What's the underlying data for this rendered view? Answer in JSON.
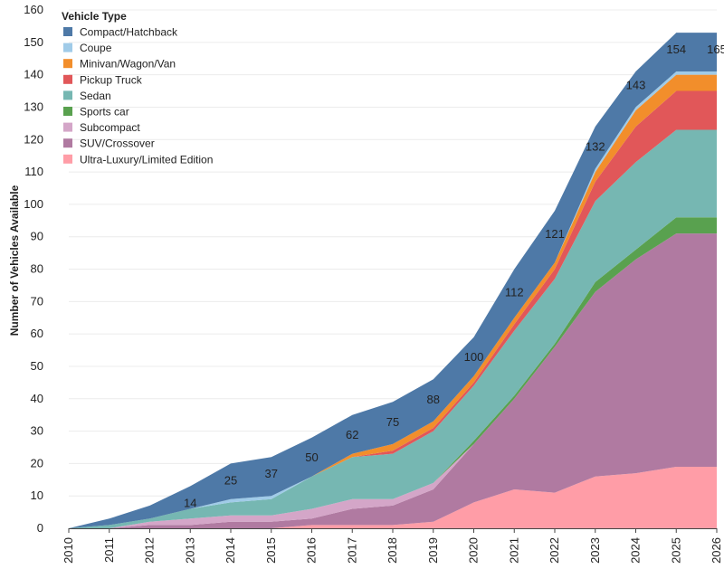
{
  "chart_data": {
    "type": "area",
    "stacked": true,
    "ylabel": "Number of Vehicles Available",
    "xlabel": "",
    "ylim": [
      0,
      160
    ],
    "yticks": [
      0,
      10,
      20,
      30,
      40,
      50,
      60,
      70,
      80,
      90,
      100,
      110,
      120,
      130,
      140,
      150,
      160
    ],
    "grid": true,
    "legend_title": "Vehicle Type",
    "legend_position": "top-left",
    "x": [
      "2010",
      "2011",
      "2012",
      "2013",
      "2014",
      "2015",
      "2016",
      "2017",
      "2018",
      "2019",
      "2020",
      "2021",
      "2022",
      "2023",
      "2024",
      "2025",
      "2026"
    ],
    "series": [
      {
        "name": "Ultra-Luxury/Limited Edition",
        "color": "#ff9da7",
        "values": [
          0,
          0,
          0,
          0,
          0,
          0,
          1,
          1,
          1,
          2,
          8,
          12,
          11,
          16,
          17,
          19,
          19
        ]
      },
      {
        "name": "SUV/Crossover",
        "color": "#b07aa1",
        "values": [
          0,
          0,
          1,
          1,
          2,
          2,
          2,
          5,
          6,
          10,
          18,
          28,
          45,
          57,
          66,
          72,
          72
        ]
      },
      {
        "name": "Subcompact",
        "color": "#d4a6c8",
        "values": [
          0,
          0,
          1,
          2,
          2,
          2,
          3,
          3,
          2,
          2,
          0,
          0,
          0,
          0,
          0,
          0,
          0
        ]
      },
      {
        "name": "Sports car",
        "color": "#59a14f",
        "values": [
          0,
          0,
          0,
          0,
          0,
          0,
          0,
          0,
          0,
          0,
          1,
          1,
          1,
          3,
          3,
          5,
          5
        ]
      },
      {
        "name": "Sedan",
        "color": "#76b7b2",
        "values": [
          0,
          1,
          1,
          3,
          4,
          5,
          10,
          13,
          14,
          16,
          17,
          20,
          20,
          25,
          27,
          27,
          27
        ]
      },
      {
        "name": "Pickup Truck",
        "color": "#e15759",
        "values": [
          0,
          0,
          0,
          0,
          0,
          0,
          0,
          0,
          1,
          1,
          1,
          2,
          3,
          6,
          11,
          12,
          12
        ]
      },
      {
        "name": "Minivan/Wagon/Van",
        "color": "#f28e2b",
        "values": [
          0,
          0,
          0,
          0,
          0,
          0,
          0,
          1,
          2,
          2,
          2,
          2,
          2,
          3,
          5,
          5,
          5
        ]
      },
      {
        "name": "Coupe",
        "color": "#a0cbe8",
        "values": [
          0,
          0,
          0,
          0,
          1,
          1,
          0,
          0,
          0,
          0,
          0,
          0,
          0,
          1,
          1,
          1,
          1
        ]
      },
      {
        "name": "Compact/Hatchback",
        "color": "#4e79a7",
        "values": [
          0,
          2,
          4,
          7,
          11,
          12,
          12,
          12,
          13,
          13,
          12,
          15,
          16,
          13,
          11,
          12,
          12
        ]
      }
    ],
    "annotations": [
      {
        "x": "2013",
        "text": "14",
        "y": 8
      },
      {
        "x": "2014",
        "text": "25",
        "y": 15
      },
      {
        "x": "2015",
        "text": "37",
        "y": 17
      },
      {
        "x": "2016",
        "text": "50",
        "y": 22
      },
      {
        "x": "2017",
        "text": "62",
        "y": 29
      },
      {
        "x": "2018",
        "text": "75",
        "y": 33
      },
      {
        "x": "2019",
        "text": "88",
        "y": 40
      },
      {
        "x": "2020",
        "text": "100",
        "y": 53
      },
      {
        "x": "2021",
        "text": "112",
        "y": 73
      },
      {
        "x": "2022",
        "text": "121",
        "y": 91
      },
      {
        "x": "2023",
        "text": "132",
        "y": 118
      },
      {
        "x": "2024",
        "text": "143",
        "y": 137
      },
      {
        "x": "2025",
        "text": "154",
        "y": 148
      },
      {
        "x": "2026",
        "text": "165",
        "y": 148
      }
    ]
  }
}
